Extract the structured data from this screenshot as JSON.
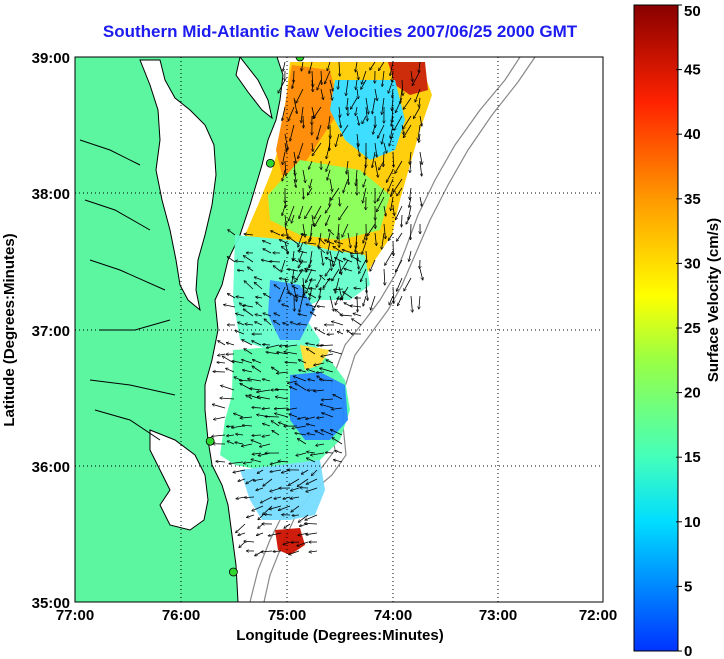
{
  "title": "Southern Mid-Atlantic Raw Velocities 2007/06/25 2000 GMT",
  "x_axis": {
    "label": "Longitude (Degrees:Minutes)",
    "ticks": [
      "77:00",
      "76:00",
      "75:00",
      "74:00",
      "73:00",
      "72:00"
    ]
  },
  "y_axis": {
    "label": "Latitude (Degrees:Minutes)",
    "ticks": [
      "39:00",
      "38:00",
      "37:00",
      "36:00",
      "35:00"
    ]
  },
  "colorbar": {
    "label": "Surface Velocity (cm/s)",
    "ticks": [
      "0",
      "5",
      "10",
      "15",
      "20",
      "25",
      "30",
      "35",
      "40",
      "45",
      "50"
    ],
    "min": 0,
    "max": 50
  },
  "colors": {
    "land": "#5cf5a0",
    "water": "#ffffff",
    "title": "#1c1cf0",
    "station": "#2fd62f"
  },
  "stations": [
    {
      "lon": -74.87,
      "lat": 39.0
    },
    {
      "lon": -75.15,
      "lat": 38.22
    },
    {
      "lon": -75.72,
      "lat": 36.18
    },
    {
      "lon": -75.5,
      "lat": 35.22
    }
  ]
}
